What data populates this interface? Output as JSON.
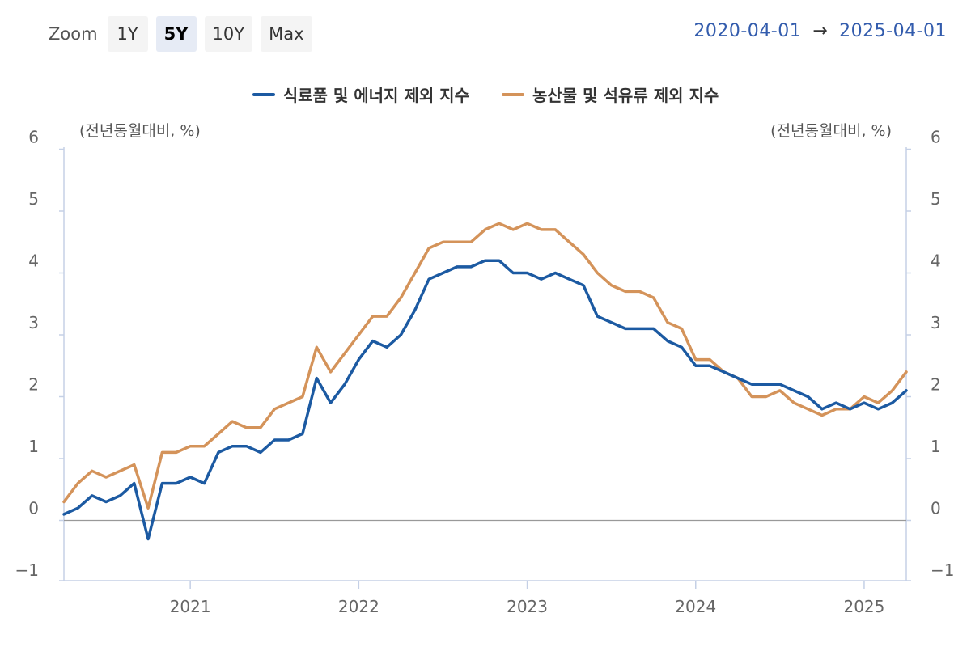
{
  "toolbar": {
    "zoom_label": "Zoom",
    "buttons": [
      {
        "label": "1Y",
        "active": false
      },
      {
        "label": "5Y",
        "active": true
      },
      {
        "label": "10Y",
        "active": false
      },
      {
        "label": "Max",
        "active": false
      }
    ]
  },
  "range": {
    "from": "2020-04-01",
    "arrow": "→",
    "to": "2025-04-01"
  },
  "chart_data": {
    "type": "line",
    "title": "",
    "xlabel": "",
    "ylabel_left": "(전년동월대비, %)",
    "ylabel_right": "(전년동월대비, %)",
    "ylim": [
      -1,
      6
    ],
    "y_ticks": [
      -1,
      0,
      1,
      2,
      3,
      4,
      5,
      6
    ],
    "y_tick_labels": [
      "−1",
      "0",
      "1",
      "2",
      "3",
      "4",
      "5",
      "6"
    ],
    "x_ticks": [
      "2021",
      "2022",
      "2023",
      "2024",
      "2025"
    ],
    "x_range": [
      "2020-04",
      "2025-04"
    ],
    "legend_position": "top",
    "grid": false,
    "series": [
      {
        "name": "식료품 및 에너지 제외 지수",
        "color": "#1c5aa2",
        "start": "2020-04",
        "values": [
          0.1,
          0.2,
          0.4,
          0.3,
          0.4,
          0.6,
          -0.3,
          0.6,
          0.6,
          0.7,
          0.6,
          1.1,
          1.2,
          1.2,
          1.1,
          1.3,
          1.3,
          1.4,
          2.3,
          1.9,
          2.2,
          2.6,
          2.9,
          2.8,
          3.0,
          3.4,
          3.9,
          4.0,
          4.1,
          4.1,
          4.2,
          4.2,
          4.0,
          4.0,
          3.9,
          4.0,
          3.9,
          3.8,
          3.3,
          3.2,
          3.1,
          3.1,
          3.1,
          2.9,
          2.8,
          2.5,
          2.5,
          2.4,
          2.3,
          2.2,
          2.2,
          2.2,
          2.1,
          2.0,
          1.8,
          1.9,
          1.8,
          1.9,
          1.8,
          1.9,
          2.1
        ]
      },
      {
        "name": "농산물 및 석유류 제외 지수",
        "color": "#d4935a",
        "start": "2020-04",
        "values": [
          0.3,
          0.6,
          0.8,
          0.7,
          0.8,
          0.9,
          0.2,
          1.1,
          1.1,
          1.2,
          1.2,
          1.4,
          1.6,
          1.5,
          1.5,
          1.8,
          1.9,
          2.0,
          2.8,
          2.4,
          2.7,
          3.0,
          3.3,
          3.3,
          3.6,
          4.0,
          4.4,
          4.5,
          4.5,
          4.5,
          4.7,
          4.8,
          4.7,
          4.8,
          4.7,
          4.7,
          4.5,
          4.3,
          4.0,
          3.8,
          3.7,
          3.7,
          3.6,
          3.2,
          3.1,
          2.6,
          2.6,
          2.4,
          2.3,
          2.0,
          2.0,
          2.1,
          1.9,
          1.8,
          1.7,
          1.8,
          1.8,
          2.0,
          1.9,
          2.1,
          2.4
        ]
      }
    ]
  }
}
